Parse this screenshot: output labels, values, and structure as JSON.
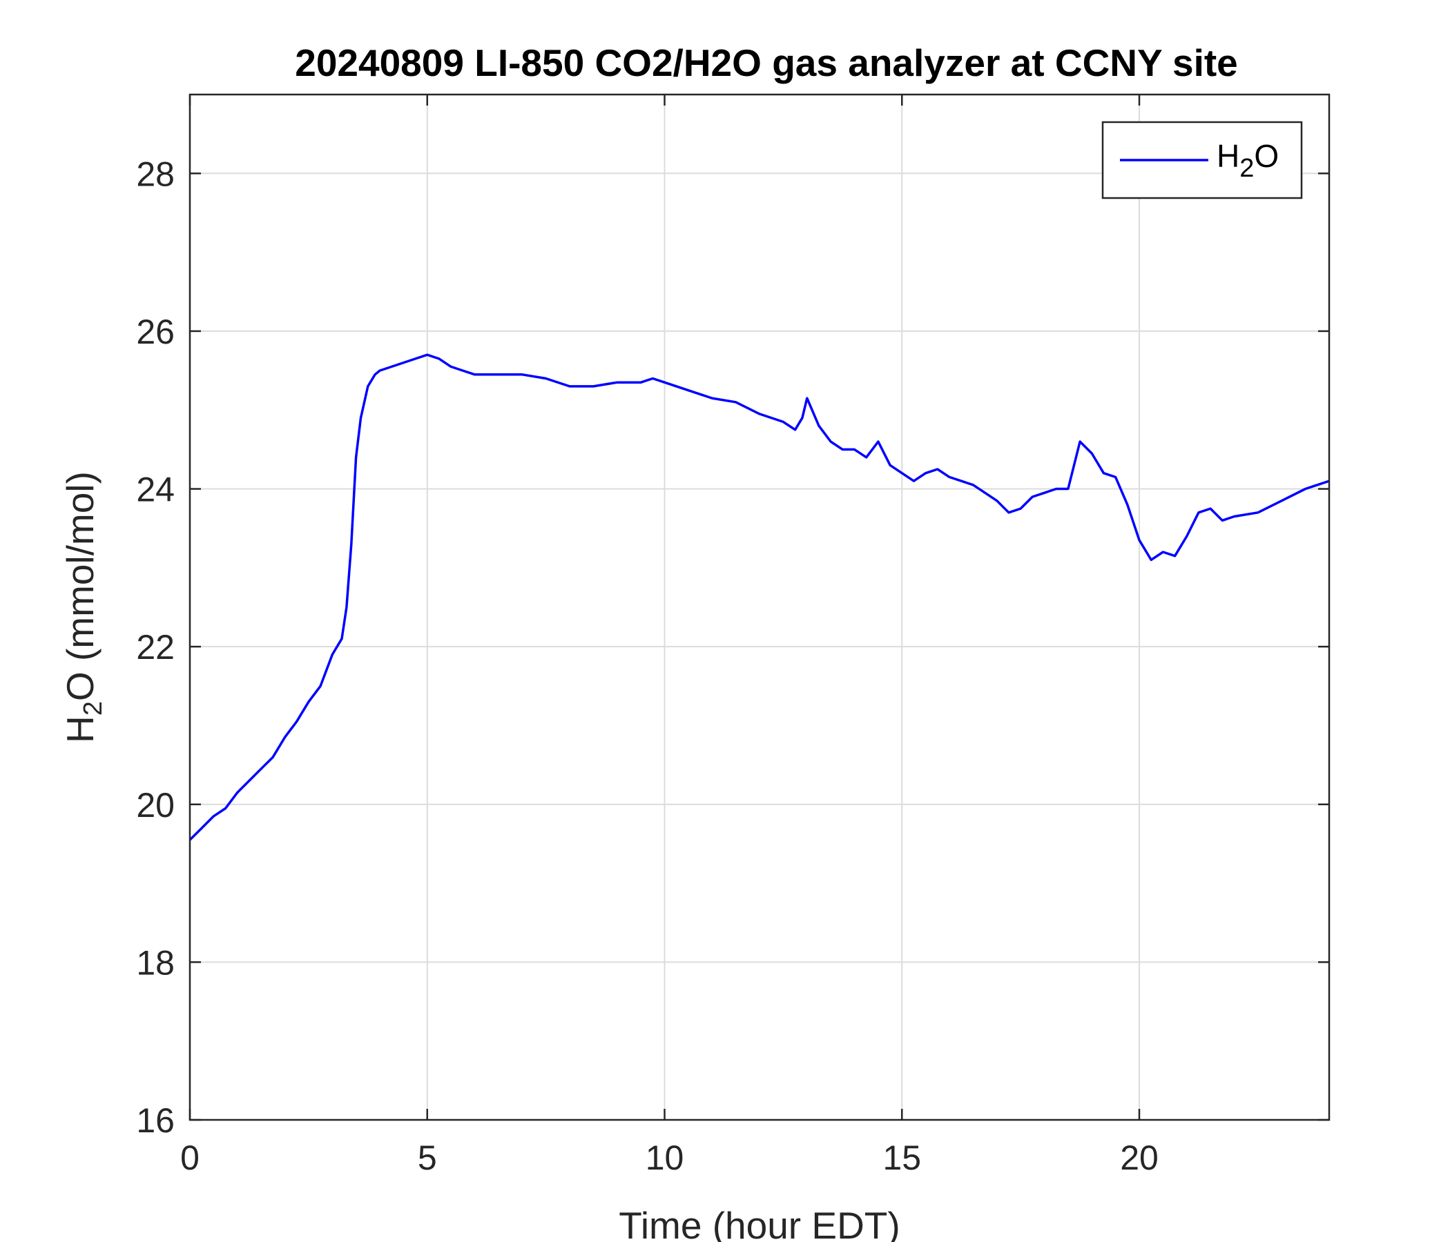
{
  "chart_data": {
    "type": "line",
    "title": "20240809 LI-850 CO2/H2O gas analyzer at CCNY site",
    "xlabel": "Time (hour EDT)",
    "ylabel": {
      "main": "H",
      "sub": "2",
      "rest": "O (mmol/mol)"
    },
    "xlim": [
      0,
      24
    ],
    "ylim": [
      16,
      29
    ],
    "xticks": [
      0,
      5,
      10,
      15,
      20
    ],
    "yticks": [
      16,
      18,
      20,
      22,
      24,
      26,
      28
    ],
    "grid": true,
    "legend_position": "top-right",
    "series": [
      {
        "name": {
          "main": "H",
          "sub": "2",
          "rest": "O"
        },
        "color": "#0000ff",
        "x": [
          0,
          0.25,
          0.5,
          0.75,
          1.0,
          1.25,
          1.5,
          1.75,
          2.0,
          2.25,
          2.5,
          2.75,
          3.0,
          3.2,
          3.3,
          3.4,
          3.5,
          3.6,
          3.75,
          3.9,
          4.0,
          4.25,
          4.5,
          4.75,
          5.0,
          5.25,
          5.5,
          5.75,
          6.0,
          6.5,
          7.0,
          7.5,
          8.0,
          8.25,
          8.5,
          9.0,
          9.5,
          9.75,
          10.0,
          10.5,
          11.0,
          11.5,
          12.0,
          12.5,
          12.75,
          12.9,
          13.0,
          13.25,
          13.5,
          13.75,
          14.0,
          14.25,
          14.5,
          14.75,
          15.0,
          15.25,
          15.5,
          15.75,
          16.0,
          16.5,
          17.0,
          17.25,
          17.5,
          17.75,
          18.0,
          18.25,
          18.5,
          18.75,
          19.0,
          19.25,
          19.5,
          19.75,
          20.0,
          20.25,
          20.5,
          20.75,
          21.0,
          21.25,
          21.5,
          21.75,
          22.0,
          22.5,
          23.0,
          23.5,
          24.0
        ],
        "y": [
          19.55,
          19.7,
          19.85,
          19.95,
          20.15,
          20.3,
          20.45,
          20.6,
          20.85,
          21.05,
          21.3,
          21.5,
          21.9,
          22.1,
          22.5,
          23.3,
          24.4,
          24.9,
          25.3,
          25.45,
          25.5,
          25.55,
          25.6,
          25.65,
          25.7,
          25.65,
          25.55,
          25.5,
          25.45,
          25.45,
          25.45,
          25.4,
          25.3,
          25.3,
          25.3,
          25.35,
          25.35,
          25.4,
          25.35,
          25.25,
          25.15,
          25.1,
          24.95,
          24.85,
          24.75,
          24.9,
          25.15,
          24.8,
          24.6,
          24.5,
          24.5,
          24.4,
          24.6,
          24.3,
          24.2,
          24.1,
          24.2,
          24.25,
          24.15,
          24.05,
          23.85,
          23.7,
          23.75,
          23.9,
          23.95,
          24.0,
          24.0,
          24.6,
          24.45,
          24.2,
          24.15,
          23.8,
          23.35,
          23.1,
          23.2,
          23.15,
          23.4,
          23.7,
          23.75,
          23.6,
          23.65,
          23.7,
          23.85,
          24.0,
          24.1
        ]
      }
    ]
  }
}
